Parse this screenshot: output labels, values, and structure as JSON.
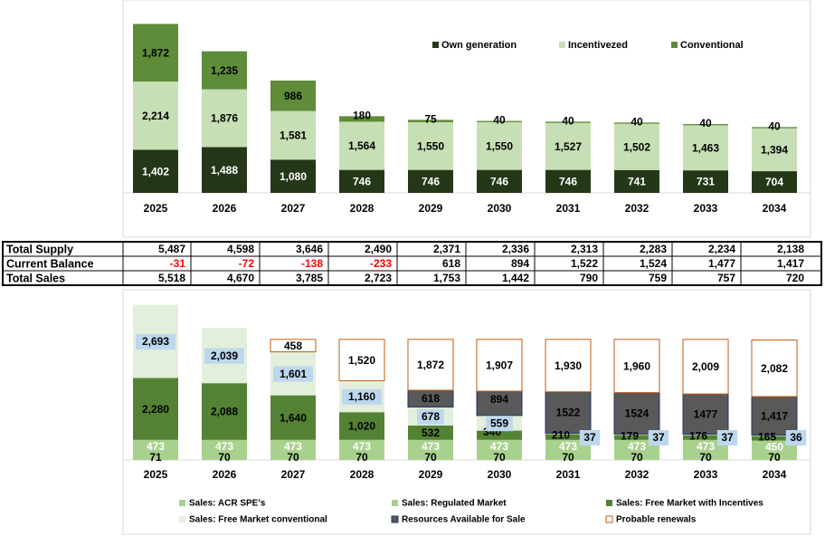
{
  "colors": {
    "own_generation": "#243818",
    "incentivized": "#c6dfb4",
    "conventional": "#5e8c38",
    "acr_spe": "#a9d18e",
    "regulated_market": "#a9d18e",
    "free_market_incentives": "#548235",
    "free_market_conventional": "#e2efda",
    "resources_available": "#595959",
    "resources_border": "#203864",
    "probable_renewals_border": "#c55a11",
    "label_box": "#bdd7ee",
    "negative_text": "#ff0000"
  },
  "chart_data": [
    {
      "type": "bar",
      "stacked": true,
      "categories": [
        "2025",
        "2026",
        "2027",
        "2028",
        "2029",
        "2030",
        "2031",
        "2032",
        "2033",
        "2034"
      ],
      "series": [
        {
          "name": "Own generation",
          "values": [
            1402,
            1488,
            1080,
            746,
            746,
            746,
            746,
            741,
            731,
            704
          ]
        },
        {
          "name": "Incentivezed",
          "values": [
            2214,
            1876,
            1581,
            1564,
            1550,
            1550,
            1527,
            1502,
            1463,
            1394
          ]
        },
        {
          "name": "Conventional",
          "values": [
            1872,
            1235,
            986,
            180,
            75,
            40,
            40,
            40,
            40,
            40
          ]
        }
      ],
      "legend_position": "top-right",
      "grid": false
    },
    {
      "type": "table",
      "columns": [
        "2025",
        "2026",
        "2027",
        "2028",
        "2029",
        "2030",
        "2031",
        "2032",
        "2033",
        "2034"
      ],
      "rows": [
        {
          "label": "Total Supply",
          "values": [
            "5,487",
            "4,598",
            "3,646",
            "2,490",
            "2,371",
            "2,336",
            "2,313",
            "2,283",
            "2,234",
            "2,138"
          ]
        },
        {
          "label": "Current Balance",
          "values": [
            "-31",
            "-72",
            "-138",
            "-233",
            "618",
            "894",
            "1,522",
            "1,524",
            "1,477",
            "1,417"
          ]
        },
        {
          "label": "Total Sales",
          "values": [
            "5,518",
            "4,670",
            "3,785",
            "2,723",
            "1,753",
            "1,442",
            "790",
            "759",
            "757",
            "720"
          ]
        }
      ]
    },
    {
      "type": "bar",
      "stacked": true,
      "categories": [
        "2025",
        "2026",
        "2027",
        "2028",
        "2029",
        "2030",
        "2031",
        "2032",
        "2033",
        "2034"
      ],
      "series": [
        {
          "name": "Sales: ACR SPE's",
          "values": [
            71,
            70,
            70,
            70,
            70,
            70,
            70,
            70,
            70,
            70
          ],
          "labels": [
            "71",
            "70",
            "70",
            "70",
            "70",
            "70",
            "70",
            "70",
            "70",
            "70"
          ]
        },
        {
          "name": "Sales: Regulated Market",
          "values": [
            473,
            473,
            473,
            473,
            473,
            473,
            473,
            473,
            473,
            450
          ],
          "labels": [
            "473",
            "473",
            "473",
            "473",
            "473",
            "473",
            "473",
            "473",
            "473",
            "450"
          ]
        },
        {
          "name": "Sales: Free Market with Incentives",
          "values": [
            2280,
            2088,
            1640,
            1020,
            532,
            340,
            210,
            179,
            176,
            165
          ],
          "labels": [
            "2,280",
            "2,088",
            "1,640",
            "1,020",
            "532",
            "340",
            "210",
            "179",
            "176",
            "165"
          ]
        },
        {
          "name": "Sales: Free Market conventional",
          "values": [
            2693,
            2039,
            1601,
            1160,
            678,
            559,
            37,
            37,
            37,
            36
          ],
          "labels": [
            "2,693",
            "2,039",
            "1,601",
            "1,160",
            "678",
            "559",
            "37",
            "37",
            "37",
            "36"
          ]
        },
        {
          "name": "Resources Available for Sale",
          "values": [
            0,
            0,
            0,
            0,
            618,
            894,
            1522,
            1524,
            1477,
            1417
          ],
          "labels": [
            "",
            "",
            "",
            "",
            "618",
            "894",
            "1522",
            "1524",
            "1477",
            "1,417"
          ]
        },
        {
          "name": "Probable renewals",
          "values": [
            0,
            0,
            458,
            1520,
            1872,
            1907,
            1930,
            1960,
            2009,
            2082
          ],
          "labels": [
            "",
            "",
            "458",
            "1,520",
            "1,872",
            "1,907",
            "1,930",
            "1,960",
            "2,009",
            "2,082"
          ]
        }
      ],
      "legend_position": "bottom",
      "grid": false
    }
  ]
}
